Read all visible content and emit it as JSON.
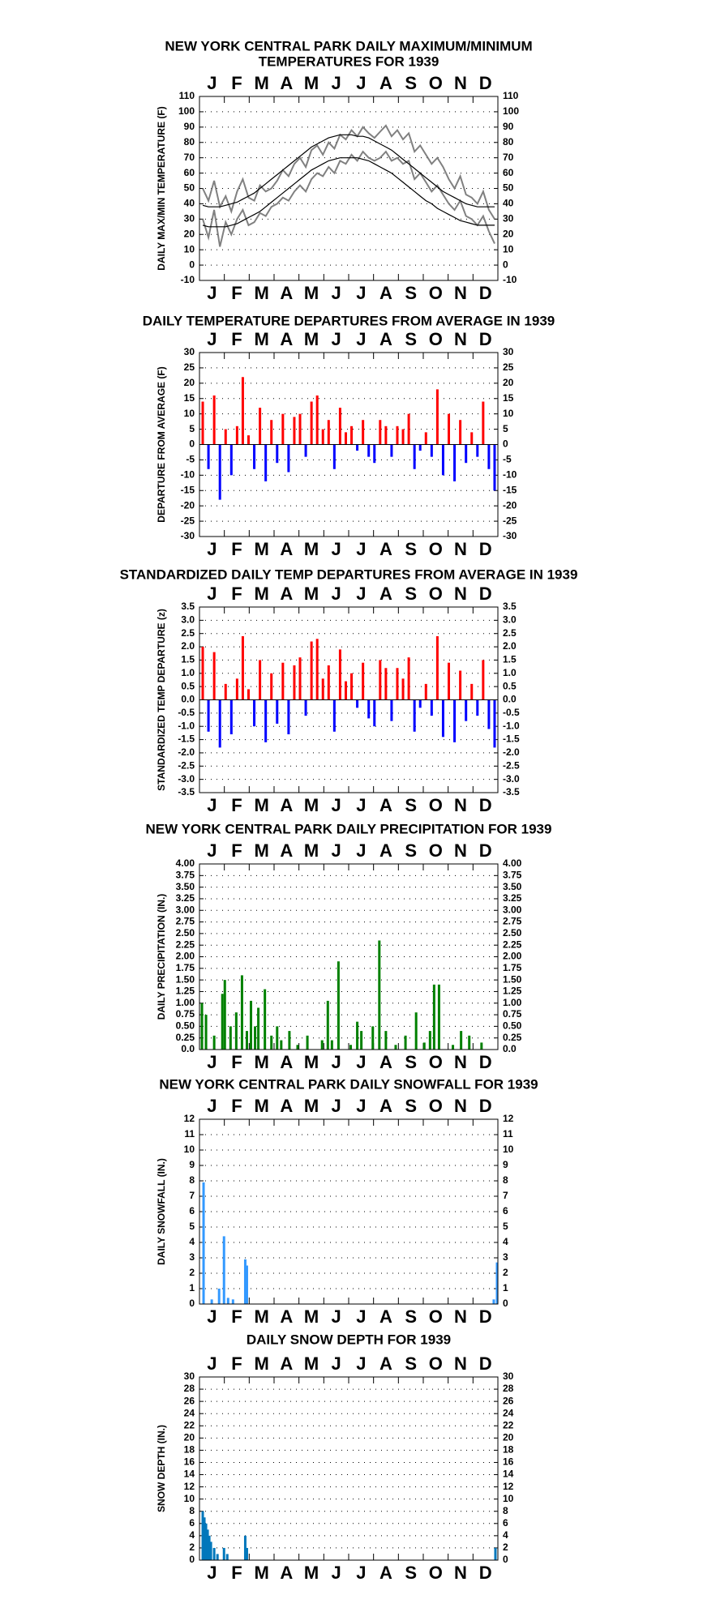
{
  "chart_data": [
    {
      "type": "line",
      "title": [
        "NEW YORK CENTRAL PARK DAILY MAXIMUM/MINIMUM",
        "TEMPERATURES FOR 1939"
      ],
      "ylabel": "DAILY MAX/MIN TEMPERATURE (F)",
      "categories": [
        "J",
        "F",
        "M",
        "A",
        "M",
        "J",
        "J",
        "A",
        "S",
        "O",
        "N",
        "D"
      ],
      "xlim": [
        0,
        365
      ],
      "x": [
        4,
        11,
        18,
        25,
        32,
        39,
        46,
        53,
        60,
        67,
        74,
        81,
        88,
        95,
        102,
        109,
        116,
        123,
        130,
        137,
        144,
        151,
        158,
        165,
        172,
        179,
        186,
        193,
        200,
        207,
        214,
        221,
        228,
        235,
        242,
        249,
        256,
        263,
        270,
        277,
        284,
        291,
        298,
        305,
        312,
        319,
        326,
        333,
        340,
        347,
        354,
        361
      ],
      "series": [
        {
          "color": "#808080",
          "values": [
            50,
            42,
            55,
            38,
            45,
            35,
            48,
            56,
            44,
            42,
            52,
            48,
            50,
            55,
            62,
            58,
            66,
            70,
            64,
            75,
            78,
            72,
            80,
            76,
            85,
            82,
            88,
            84,
            90,
            86,
            83,
            87,
            91,
            84,
            88,
            82,
            86,
            74,
            78,
            72,
            66,
            70,
            64,
            56,
            50,
            58,
            46,
            44,
            40,
            48,
            36,
            30
          ]
        },
        {
          "color": "#808080",
          "values": [
            30,
            18,
            36,
            12,
            28,
            20,
            30,
            36,
            26,
            28,
            34,
            32,
            38,
            40,
            44,
            42,
            48,
            52,
            48,
            56,
            60,
            58,
            64,
            60,
            68,
            66,
            72,
            68,
            74,
            70,
            68,
            70,
            74,
            68,
            70,
            66,
            68,
            56,
            60,
            54,
            48,
            52,
            46,
            40,
            36,
            42,
            32,
            30,
            26,
            32,
            22,
            14
          ]
        },
        {
          "color": "#000000",
          "values": [
            39,
            38,
            38,
            38,
            39,
            40,
            41,
            43,
            45,
            47,
            50,
            53,
            56,
            59,
            62,
            65,
            68,
            71,
            74,
            77,
            79,
            81,
            83,
            84,
            85,
            85,
            85,
            84,
            84,
            83,
            81,
            79,
            77,
            75,
            72,
            69,
            66,
            63,
            60,
            57,
            54,
            51,
            48,
            46,
            44,
            42,
            40,
            39,
            38,
            38,
            38,
            38
          ]
        },
        {
          "color": "#000000",
          "values": [
            26,
            25,
            25,
            25,
            25,
            26,
            27,
            29,
            31,
            33,
            35,
            38,
            41,
            44,
            47,
            50,
            53,
            56,
            59,
            62,
            64,
            66,
            68,
            69,
            70,
            70,
            70,
            70,
            69,
            68,
            66,
            64,
            62,
            60,
            57,
            54,
            51,
            48,
            45,
            42,
            40,
            37,
            35,
            33,
            31,
            29,
            28,
            27,
            26,
            26,
            26,
            26
          ]
        }
      ],
      "ylim": [
        -10,
        110
      ],
      "yticks": [
        -10,
        0,
        10,
        20,
        30,
        40,
        50,
        60,
        70,
        80,
        90,
        100,
        110
      ],
      "grid": true
    },
    {
      "type": "bar",
      "title": [
        "DAILY TEMPERATURE DEPARTURES FROM AVERAGE IN 1939"
      ],
      "ylabel": "DEPARTURE FROM AVERAGE (F)",
      "categories": [
        "J",
        "F",
        "M",
        "A",
        "M",
        "J",
        "J",
        "A",
        "S",
        "O",
        "N",
        "D"
      ],
      "xlim": [
        0,
        365
      ],
      "x": [
        4,
        11,
        18,
        25,
        32,
        39,
        46,
        53,
        60,
        67,
        74,
        81,
        88,
        95,
        102,
        109,
        116,
        123,
        130,
        137,
        144,
        151,
        158,
        165,
        172,
        179,
        186,
        193,
        200,
        207,
        214,
        221,
        228,
        235,
        242,
        249,
        256,
        263,
        270,
        277,
        284,
        291,
        298,
        305,
        312,
        319,
        326,
        333,
        340,
        347,
        354,
        361
      ],
      "values": [
        14,
        -8,
        16,
        -18,
        5,
        -10,
        6,
        22,
        3,
        -8,
        12,
        -12,
        8,
        -6,
        10,
        -9,
        9,
        10,
        -4,
        14,
        16,
        5,
        8,
        -8,
        12,
        4,
        6,
        -2,
        8,
        -4,
        -6,
        8,
        6,
        -4,
        6,
        5,
        10,
        -8,
        -2,
        4,
        -4,
        18,
        -10,
        10,
        -12,
        8,
        -6,
        4,
        -4,
        14,
        -8,
        -15
      ],
      "colors": {
        "positive": "#ff0000",
        "negative": "#0000ff"
      },
      "ylim": [
        -30,
        30
      ],
      "yticks": [
        -30,
        -25,
        -20,
        -15,
        -10,
        -5,
        0,
        5,
        10,
        15,
        20,
        25,
        30
      ],
      "grid": true
    },
    {
      "type": "bar",
      "title": [
        "STANDARDIZED DAILY TEMP DEPARTURES FROM AVERAGE IN 1939"
      ],
      "ylabel": "STANDARDIZED TEMP DEPARTURE (z)",
      "categories": [
        "J",
        "F",
        "M",
        "A",
        "M",
        "J",
        "J",
        "A",
        "S",
        "O",
        "N",
        "D"
      ],
      "xlim": [
        0,
        365
      ],
      "x": [
        4,
        11,
        18,
        25,
        32,
        39,
        46,
        53,
        60,
        67,
        74,
        81,
        88,
        95,
        102,
        109,
        116,
        123,
        130,
        137,
        144,
        151,
        158,
        165,
        172,
        179,
        186,
        193,
        200,
        207,
        214,
        221,
        228,
        235,
        242,
        249,
        256,
        263,
        270,
        277,
        284,
        291,
        298,
        305,
        312,
        319,
        326,
        333,
        340,
        347,
        354,
        361
      ],
      "values": [
        2.0,
        -1.2,
        1.8,
        -1.8,
        0.6,
        -1.3,
        0.8,
        2.4,
        0.4,
        -1.0,
        1.5,
        -1.6,
        1.0,
        -0.9,
        1.4,
        -1.3,
        1.3,
        1.6,
        -0.6,
        2.2,
        2.3,
        0.8,
        1.3,
        -1.2,
        1.9,
        0.7,
        1.0,
        -0.3,
        1.4,
        -0.7,
        -1.0,
        1.5,
        1.2,
        -0.8,
        1.2,
        0.8,
        1.6,
        -1.2,
        -0.3,
        0.6,
        -0.6,
        2.4,
        -1.4,
        1.4,
        -1.6,
        1.1,
        -0.8,
        0.6,
        -0.6,
        1.5,
        -1.1,
        -1.8
      ],
      "colors": {
        "positive": "#ff0000",
        "negative": "#0000ff"
      },
      "ylim": [
        -3.5,
        3.5
      ],
      "yticks": [
        -3.5,
        {
          "value": -3,
          "label": "-3.0"
        },
        -2.5,
        {
          "value": -2,
          "label": "-2.0"
        },
        -1.5,
        {
          "value": -1,
          "label": "-1.0"
        },
        -0.5,
        {
          "value": 0,
          "label": "0.0"
        },
        0.5,
        {
          "value": 1,
          "label": "1.0"
        },
        1.5,
        {
          "value": 2,
          "label": "2.0"
        },
        2.5,
        {
          "value": 3,
          "label": "3.0"
        },
        3.5
      ],
      "grid": true
    },
    {
      "type": "bar",
      "title": [
        "NEW YORK CENTRAL PARK DAILY PRECIPITATION FOR 1939"
      ],
      "ylabel": "DAILY PRECIPITATION (IN.)",
      "categories": [
        "J",
        "F",
        "M",
        "A",
        "M",
        "J",
        "J",
        "A",
        "S",
        "O",
        "N",
        "D"
      ],
      "xlim": [
        0,
        365
      ],
      "x": [
        3,
        8,
        18,
        28,
        31,
        38,
        45,
        52,
        58,
        63,
        68,
        72,
        80,
        88,
        95,
        100,
        110,
        120,
        132,
        150,
        157,
        162,
        170,
        185,
        193,
        198,
        212,
        220,
        228,
        240,
        252,
        265,
        275,
        282,
        287,
        293,
        310,
        320,
        330,
        345
      ],
      "values": [
        1.0,
        0.75,
        0.3,
        1.2,
        1.5,
        0.5,
        0.8,
        1.6,
        0.4,
        1.05,
        0.5,
        0.9,
        1.3,
        0.3,
        0.5,
        0.2,
        0.4,
        0.1,
        0.3,
        0.2,
        1.05,
        0.2,
        1.9,
        0.1,
        0.6,
        0.4,
        0.5,
        2.35,
        0.4,
        0.1,
        0.3,
        0.8,
        0.15,
        0.4,
        1.4,
        1.4,
        0.1,
        0.4,
        0.3,
        0.15
      ],
      "color": "#008000",
      "ylim": [
        0,
        4
      ],
      "yticks": [
        {
          "value": 0,
          "label": "0.0"
        },
        0.25,
        {
          "value": 0.5,
          "label": "0.50"
        },
        0.75,
        {
          "value": 1,
          "label": "1.00"
        },
        1.25,
        {
          "value": 1.5,
          "label": "1.50"
        },
        1.75,
        {
          "value": 2,
          "label": "2.00"
        },
        2.25,
        {
          "value": 2.5,
          "label": "2.50"
        },
        2.75,
        {
          "value": 3,
          "label": "3.00"
        },
        3.25,
        {
          "value": 3.5,
          "label": "3.50"
        },
        3.75,
        {
          "value": 4,
          "label": "4.00"
        }
      ],
      "grid": true
    },
    {
      "type": "bar",
      "title": [
        "NEW YORK CENTRAL PARK DAILY SNOWFALL FOR 1939"
      ],
      "ylabel": "DAILY SNOWFALL (IN.)",
      "categories": [
        "J",
        "F",
        "M",
        "A",
        "M",
        "J",
        "J",
        "A",
        "S",
        "O",
        "N",
        "D"
      ],
      "xlim": [
        0,
        365
      ],
      "x": [
        5,
        15,
        24,
        30,
        35,
        41,
        56,
        58,
        360,
        364
      ],
      "values": [
        7.9,
        0.3,
        1.0,
        4.4,
        0.4,
        0.3,
        2.9,
        2.5,
        0.3,
        2.7
      ],
      "color": "#3399ff",
      "ylim": [
        0,
        12
      ],
      "yticks": [
        0,
        1,
        2,
        3,
        4,
        5,
        6,
        7,
        8,
        9,
        10,
        11,
        12
      ],
      "grid": true
    },
    {
      "type": "bar",
      "title": [
        "DAILY SNOW DEPTH FOR 1939"
      ],
      "ylabel": "SNOW DEPTH (IN.)",
      "categories": [
        "J",
        "F",
        "M",
        "A",
        "M",
        "J",
        "J",
        "A",
        "S",
        "O",
        "N",
        "D"
      ],
      "xlim": [
        0,
        365
      ],
      "x": [
        4,
        6,
        8,
        10,
        12,
        14,
        18,
        22,
        30,
        34,
        56,
        58,
        362
      ],
      "values": [
        8,
        7,
        6,
        5,
        4,
        3,
        2,
        1,
        2,
        1,
        4,
        2,
        2
      ],
      "color": "#0077bb",
      "ylim": [
        0,
        30
      ],
      "yticks": [
        0,
        2,
        4,
        6,
        8,
        10,
        12,
        14,
        16,
        18,
        20,
        22,
        24,
        26,
        28,
        30
      ],
      "grid": true
    }
  ]
}
